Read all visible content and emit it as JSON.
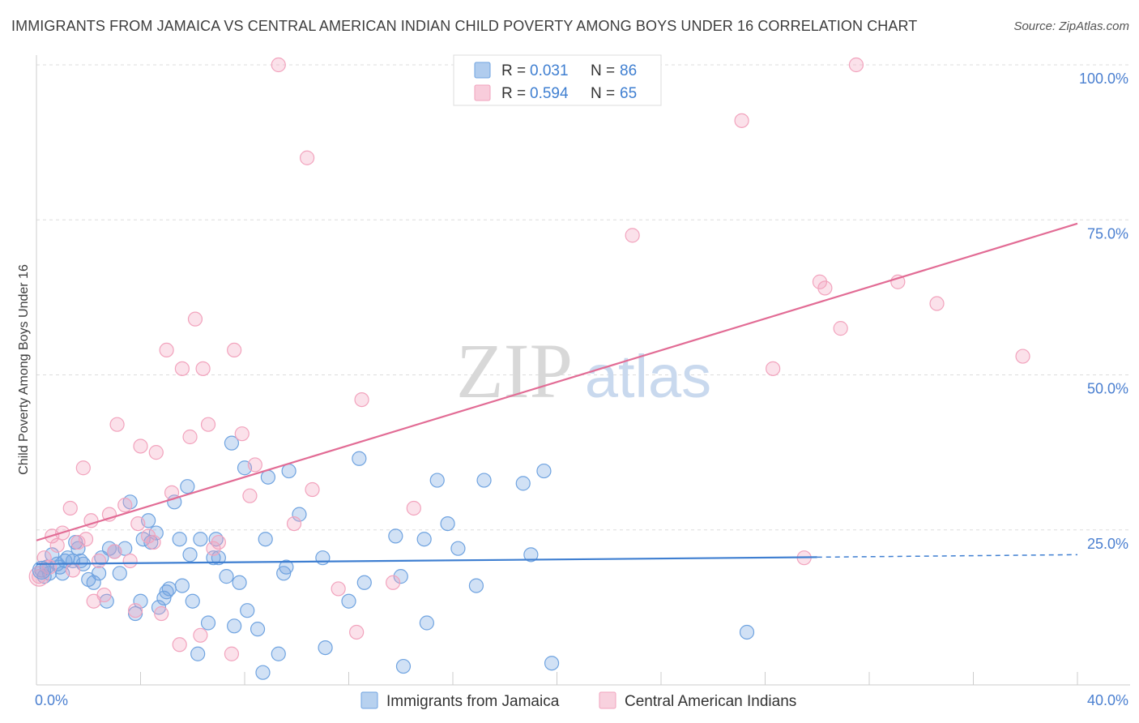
{
  "title": "IMMIGRANTS FROM JAMAICA VS CENTRAL AMERICAN INDIAN CHILD POVERTY AMONG BOYS UNDER 16 CORRELATION CHART",
  "source": "Source: ZipAtlas.com",
  "watermark": {
    "zip": "ZIP",
    "atlas": "atlas"
  },
  "chart_data": {
    "type": "scatter",
    "xlabel": "",
    "ylabel": "Child Poverty Among Boys Under 16",
    "xlim": [
      0,
      40
    ],
    "ylim": [
      0,
      100
    ],
    "x_tick_labels": [
      "0.0%",
      "40.0%"
    ],
    "y_ticks": [
      25,
      50,
      75,
      100
    ],
    "y_tick_labels": [
      "25.0%",
      "50.0%",
      "75.0%",
      "100.0%"
    ],
    "grid": true,
    "legend_position": "top-center",
    "series": [
      {
        "name": "Immigrants from Jamaica",
        "color": "#6fa3e0",
        "line_color": "#3f7fd1",
        "r_label": "R =",
        "r_value": "0.031",
        "n_label": "N =",
        "n_value": "86",
        "trend": {
          "x_start": 0,
          "y_start": 19.5,
          "x_solid_end": 30,
          "y_solid_end": 20.6,
          "x_end": 40,
          "y_end": 21.0
        },
        "points": [
          [
            0.2,
            18.5
          ],
          [
            0.3,
            17.5
          ],
          [
            0.4,
            19
          ],
          [
            0.5,
            18
          ],
          [
            0.6,
            21
          ],
          [
            0.8,
            19.5
          ],
          [
            0.9,
            19
          ],
          [
            1.0,
            18
          ],
          [
            1.1,
            20
          ],
          [
            1.2,
            20.5
          ],
          [
            1.4,
            20
          ],
          [
            1.5,
            23
          ],
          [
            1.6,
            22
          ],
          [
            1.7,
            20
          ],
          [
            1.8,
            19.5
          ],
          [
            2.0,
            17
          ],
          [
            2.2,
            16.5
          ],
          [
            2.4,
            18
          ],
          [
            2.5,
            20.5
          ],
          [
            2.7,
            13.5
          ],
          [
            2.8,
            22
          ],
          [
            3.0,
            21.5
          ],
          [
            3.2,
            18
          ],
          [
            3.4,
            22
          ],
          [
            3.6,
            29.5
          ],
          [
            3.8,
            11.5
          ],
          [
            4.0,
            13.5
          ],
          [
            4.1,
            23.5
          ],
          [
            4.3,
            26.5
          ],
          [
            4.4,
            23
          ],
          [
            4.6,
            24.5
          ],
          [
            4.7,
            12.5
          ],
          [
            4.9,
            14
          ],
          [
            5.0,
            15
          ],
          [
            5.1,
            15.5
          ],
          [
            5.3,
            29.5
          ],
          [
            5.5,
            23.5
          ],
          [
            5.6,
            16
          ],
          [
            5.8,
            32
          ],
          [
            5.9,
            21
          ],
          [
            6.0,
            13.5
          ],
          [
            6.2,
            5
          ],
          [
            6.3,
            23.5
          ],
          [
            6.6,
            10
          ],
          [
            6.8,
            20.5
          ],
          [
            6.9,
            23.5
          ],
          [
            7.0,
            20.5
          ],
          [
            7.3,
            17.5
          ],
          [
            7.5,
            39
          ],
          [
            7.6,
            9.5
          ],
          [
            7.8,
            16.5
          ],
          [
            8.0,
            35
          ],
          [
            8.1,
            12
          ],
          [
            8.5,
            9
          ],
          [
            8.7,
            2
          ],
          [
            8.8,
            23.5
          ],
          [
            8.9,
            33.5
          ],
          [
            9.3,
            5
          ],
          [
            9.5,
            18
          ],
          [
            9.6,
            19
          ],
          [
            9.7,
            34.5
          ],
          [
            10.1,
            27.5
          ],
          [
            11.0,
            20.5
          ],
          [
            11.1,
            6
          ],
          [
            12.0,
            13.5
          ],
          [
            12.4,
            36.5
          ],
          [
            12.6,
            16.5
          ],
          [
            13.8,
            24
          ],
          [
            14.0,
            17.5
          ],
          [
            14.1,
            3
          ],
          [
            14.9,
            23.5
          ],
          [
            15.0,
            10
          ],
          [
            15.4,
            33
          ],
          [
            15.8,
            26
          ],
          [
            16.2,
            22
          ],
          [
            16.9,
            16
          ],
          [
            17.2,
            33
          ],
          [
            18.7,
            32.5
          ],
          [
            19.0,
            21
          ],
          [
            19.5,
            34.5
          ],
          [
            19.8,
            3.5
          ],
          [
            27.3,
            8.5
          ]
        ]
      },
      {
        "name": "Central American Indians",
        "color": "#f2a3bd",
        "line_color": "#e26c95",
        "r_label": "R =",
        "r_value": "0.594",
        "n_label": "N =",
        "n_value": "65",
        "trend": {
          "x_start": 0,
          "y_start": 23.3,
          "x_end": 40,
          "y_end": 74.4
        },
        "points": [
          [
            0.1,
            17.5
          ],
          [
            0.3,
            20.5
          ],
          [
            0.5,
            19
          ],
          [
            0.6,
            24
          ],
          [
            0.8,
            22.5
          ],
          [
            1.0,
            24.5
          ],
          [
            1.3,
            28.5
          ],
          [
            1.4,
            18.5
          ],
          [
            1.6,
            23
          ],
          [
            1.8,
            35
          ],
          [
            1.9,
            23.5
          ],
          [
            2.1,
            26.5
          ],
          [
            2.2,
            13.5
          ],
          [
            2.4,
            20
          ],
          [
            2.6,
            14.5
          ],
          [
            2.8,
            27.5
          ],
          [
            3.0,
            21.5
          ],
          [
            3.1,
            42
          ],
          [
            3.4,
            29
          ],
          [
            3.6,
            20
          ],
          [
            3.8,
            12
          ],
          [
            3.9,
            26
          ],
          [
            4.0,
            38.5
          ],
          [
            4.3,
            24
          ],
          [
            4.5,
            23
          ],
          [
            4.6,
            37.5
          ],
          [
            4.8,
            11.5
          ],
          [
            5.0,
            54
          ],
          [
            5.2,
            31
          ],
          [
            5.5,
            6.5
          ],
          [
            5.6,
            51
          ],
          [
            5.9,
            40
          ],
          [
            6.1,
            59
          ],
          [
            6.3,
            8
          ],
          [
            6.4,
            51
          ],
          [
            6.6,
            42
          ],
          [
            6.8,
            22
          ],
          [
            7.0,
            23
          ],
          [
            7.5,
            5
          ],
          [
            7.6,
            54
          ],
          [
            7.9,
            40.5
          ],
          [
            8.2,
            30.5
          ],
          [
            8.4,
            35.5
          ],
          [
            9.3,
            100
          ],
          [
            9.9,
            26
          ],
          [
            10.4,
            85
          ],
          [
            10.6,
            31.5
          ],
          [
            11.6,
            15.5
          ],
          [
            12.3,
            8.5
          ],
          [
            12.5,
            46
          ],
          [
            13.7,
            16.5
          ],
          [
            14.5,
            28.5
          ],
          [
            22.9,
            72.5
          ],
          [
            27.1,
            91
          ],
          [
            28.3,
            51
          ],
          [
            29.5,
            20.5
          ],
          [
            30.1,
            65
          ],
          [
            30.3,
            64
          ],
          [
            30.9,
            57.5
          ],
          [
            31.5,
            100
          ],
          [
            33.1,
            65
          ],
          [
            34.6,
            61.5
          ],
          [
            37.9,
            53
          ]
        ]
      }
    ]
  }
}
